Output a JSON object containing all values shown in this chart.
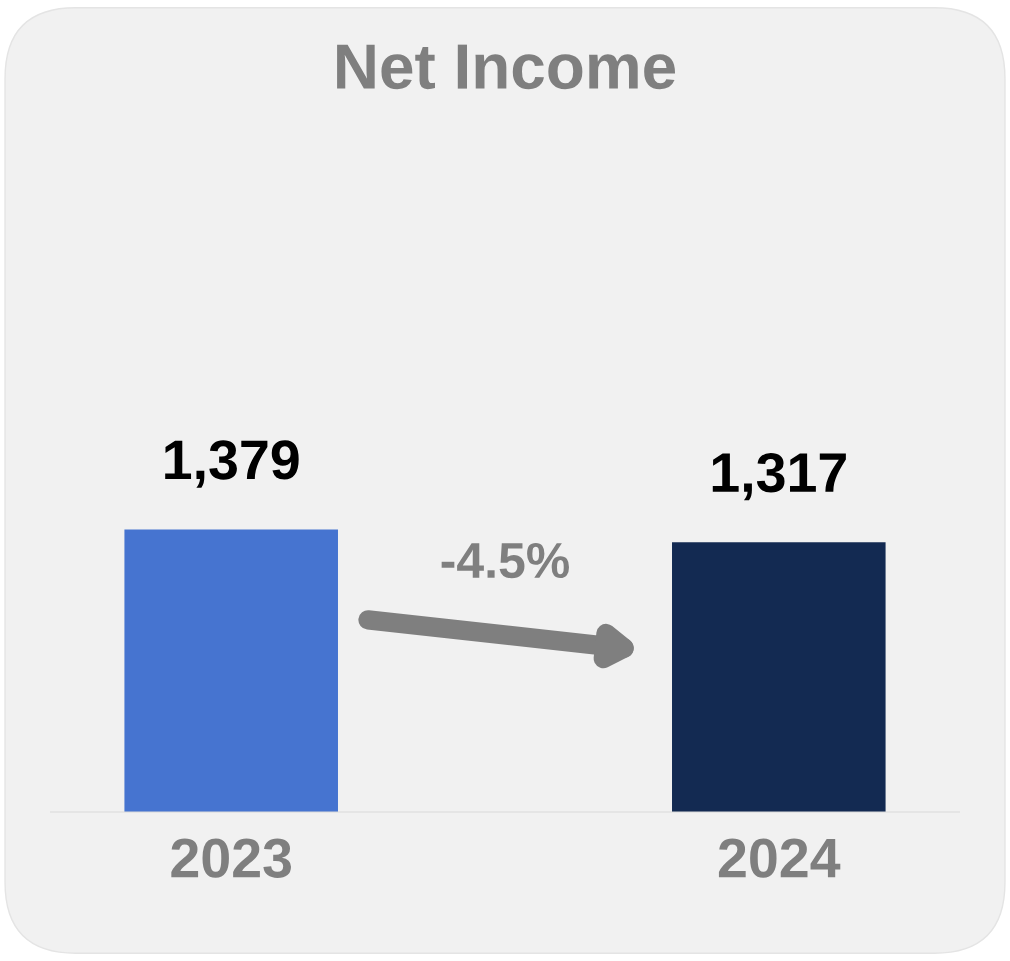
{
  "chart_data": {
    "type": "bar",
    "title": "Net Income",
    "categories": [
      "2023",
      "2024"
    ],
    "values": [
      1379,
      1317
    ],
    "colors": [
      "#4674d0",
      "#132a52"
    ],
    "value_labels": [
      "1,379",
      "1,317"
    ],
    "annotations": [
      "-4.5%"
    ],
    "grid": false,
    "legend": false
  }
}
